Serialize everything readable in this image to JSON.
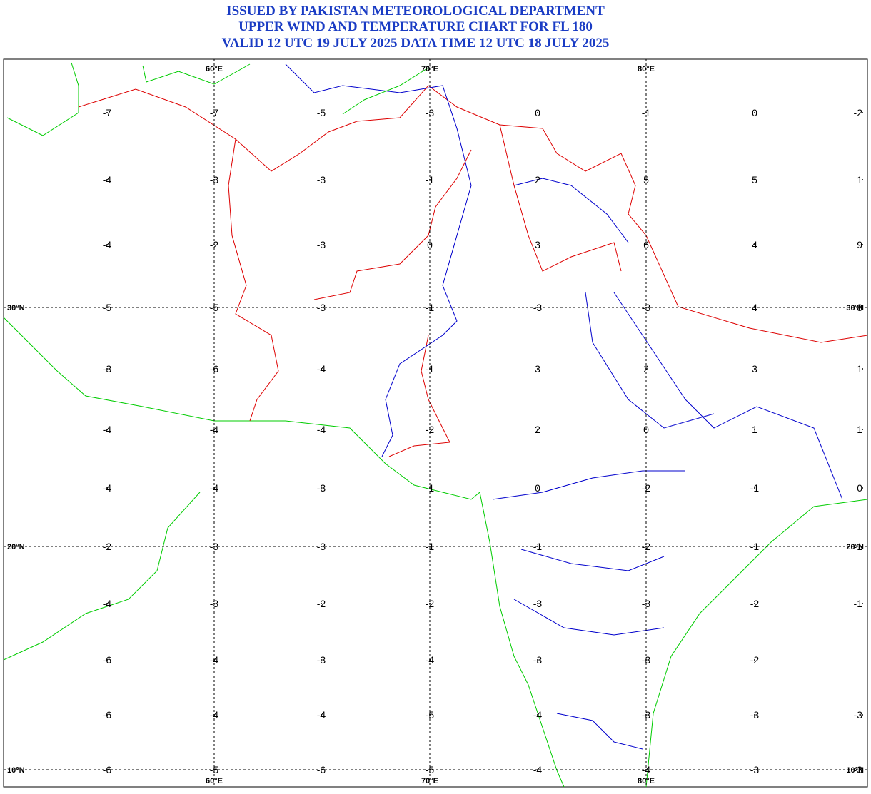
{
  "header": {
    "lines": [
      "ISSUED BY PAKISTAN METEOROLOGICAL DEPARTMENT",
      "UPPER WIND AND TEMPERATURE CHART FOR FL 180",
      "VALID 12 UTC 19 JULY 2025 DATA TIME 12 UTC 18 JULY 2025"
    ]
  },
  "map": {
    "lon_labels": [
      "60°E",
      "70°E",
      "80°E"
    ],
    "lat_labels": [
      "30°N",
      "20°N",
      "10°N"
    ],
    "temperatures": [
      [
        -7,
        -7,
        -5,
        -3,
        0,
        -1,
        0,
        -2
      ],
      [
        -4,
        -3,
        -3,
        -1,
        2,
        5,
        5,
        1
      ],
      [
        -4,
        -2,
        -3,
        0,
        3,
        6,
        4,
        9
      ],
      [
        -5,
        -5,
        -3,
        -1,
        -3,
        -3,
        4,
        8
      ],
      [
        -3,
        -6,
        -4,
        -1,
        3,
        2,
        3,
        1
      ],
      [
        -4,
        -4,
        -4,
        -2,
        2,
        0,
        1,
        1
      ],
      [
        -4,
        -4,
        -3,
        -1,
        0,
        -2,
        -1,
        0
      ],
      [
        -2,
        -3,
        -3,
        -1,
        -1,
        -2,
        -1,
        -1
      ],
      [
        -4,
        -3,
        -2,
        -2,
        -3,
        -3,
        -2,
        -1
      ],
      [
        -6,
        -4,
        -3,
        -4,
        -3,
        -3,
        -2,
        null
      ],
      [
        -6,
        -4,
        -4,
        -5,
        -4,
        -3,
        -3,
        -3
      ],
      [
        -6,
        -5,
        -6,
        -5,
        -4,
        -4,
        -3,
        -3
      ]
    ]
  }
}
